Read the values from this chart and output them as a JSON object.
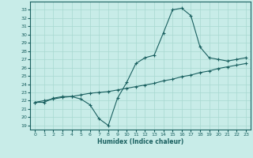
{
  "xlabel": "Humidex (Indice chaleur)",
  "bg_color": "#c8ece8",
  "line_color": "#1a6060",
  "grid_color": "#a8d8d0",
  "xlim": [
    -0.5,
    23.5
  ],
  "ylim": [
    18.5,
    34.0
  ],
  "yticks": [
    19,
    20,
    21,
    22,
    23,
    24,
    25,
    26,
    27,
    28,
    29,
    30,
    31,
    32,
    33
  ],
  "xticks": [
    0,
    1,
    2,
    3,
    4,
    5,
    6,
    7,
    8,
    9,
    10,
    11,
    12,
    13,
    14,
    15,
    16,
    17,
    18,
    19,
    20,
    21,
    22,
    23
  ],
  "line1_x": [
    0,
    1,
    2,
    3,
    4,
    5,
    6,
    7,
    8,
    9,
    10,
    11,
    12,
    13,
    14,
    15,
    16,
    17,
    18,
    19,
    20,
    21,
    22,
    23
  ],
  "line1_y": [
    21.8,
    21.8,
    22.3,
    22.5,
    22.5,
    22.2,
    21.5,
    19.8,
    19.0,
    22.3,
    24.2,
    26.5,
    27.2,
    27.5,
    30.2,
    33.0,
    33.2,
    32.3,
    28.5,
    27.2,
    27.0,
    26.8,
    27.0,
    27.2
  ],
  "line2_x": [
    0,
    1,
    2,
    3,
    4,
    5,
    6,
    7,
    8,
    9,
    10,
    11,
    12,
    13,
    14,
    15,
    16,
    17,
    18,
    19,
    20,
    21,
    22,
    23
  ],
  "line2_y": [
    21.8,
    22.0,
    22.2,
    22.4,
    22.5,
    22.7,
    22.9,
    23.0,
    23.1,
    23.3,
    23.5,
    23.7,
    23.9,
    24.1,
    24.4,
    24.6,
    24.9,
    25.1,
    25.4,
    25.6,
    25.9,
    26.1,
    26.3,
    26.5
  ]
}
